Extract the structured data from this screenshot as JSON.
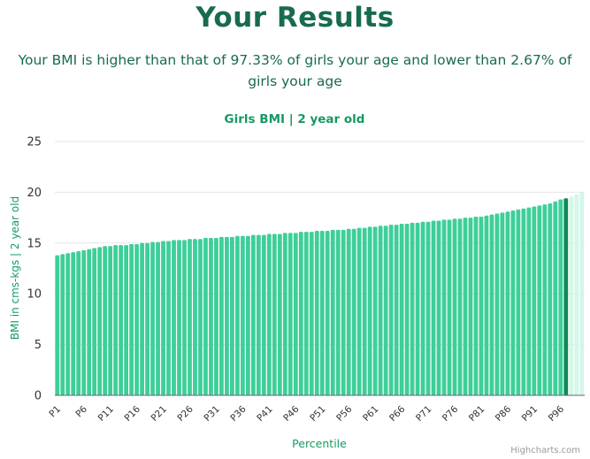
{
  "page": {
    "title": "Your Results",
    "summary": "Your BMI is higher than that of 97.33% of girls your age and lower than 2.67% of girls your age",
    "credits": "Highcharts.com"
  },
  "colors": {
    "bar": "#3ecf99",
    "highlight": "#0f8a58",
    "above": "#d3f7e8",
    "title": "#176b50",
    "chart_title": "#149a62",
    "axis_label": "#169a62"
  },
  "chart_data": {
    "type": "bar",
    "title": "Girls BMI | 2 year old",
    "xlabel": "Percentile",
    "ylabel": "BMI in cms-kgs | 2 year old",
    "ylim": [
      0,
      25
    ],
    "yticks": [
      0,
      5,
      10,
      15,
      20,
      25
    ],
    "grid": true,
    "highlight_category": "P97",
    "tick_labels": [
      "P1",
      "P6",
      "P11",
      "P16",
      "P21",
      "P26",
      "P31",
      "P36",
      "P41",
      "P46",
      "P51",
      "P56",
      "P61",
      "P66",
      "P71",
      "P76",
      "P81",
      "P86",
      "P91",
      "P96"
    ],
    "categories": [
      "P1",
      "P2",
      "P3",
      "P4",
      "P5",
      "P6",
      "P7",
      "P8",
      "P9",
      "P10",
      "P11",
      "P12",
      "P13",
      "P14",
      "P15",
      "P16",
      "P17",
      "P18",
      "P19",
      "P20",
      "P21",
      "P22",
      "P23",
      "P24",
      "P25",
      "P26",
      "P27",
      "P28",
      "P29",
      "P30",
      "P31",
      "P32",
      "P33",
      "P34",
      "P35",
      "P36",
      "P37",
      "P38",
      "P39",
      "P40",
      "P41",
      "P42",
      "P43",
      "P44",
      "P45",
      "P46",
      "P47",
      "P48",
      "P49",
      "P50",
      "P51",
      "P52",
      "P53",
      "P54",
      "P55",
      "P56",
      "P57",
      "P58",
      "P59",
      "P60",
      "P61",
      "P62",
      "P63",
      "P64",
      "P65",
      "P66",
      "P67",
      "P68",
      "P69",
      "P70",
      "P71",
      "P72",
      "P73",
      "P74",
      "P75",
      "P76",
      "P77",
      "P78",
      "P79",
      "P80",
      "P81",
      "P82",
      "P83",
      "P84",
      "P85",
      "P86",
      "P87",
      "P88",
      "P89",
      "P90",
      "P91",
      "P92",
      "P93",
      "P94",
      "P95",
      "P96",
      "P97",
      "P98",
      "P99",
      "P100"
    ],
    "values": [
      13.8,
      13.9,
      14.0,
      14.1,
      14.2,
      14.3,
      14.4,
      14.5,
      14.6,
      14.7,
      14.7,
      14.8,
      14.8,
      14.8,
      14.9,
      14.9,
      15.0,
      15.0,
      15.1,
      15.1,
      15.2,
      15.2,
      15.3,
      15.3,
      15.3,
      15.4,
      15.4,
      15.4,
      15.5,
      15.5,
      15.5,
      15.6,
      15.6,
      15.6,
      15.7,
      15.7,
      15.7,
      15.8,
      15.8,
      15.8,
      15.9,
      15.9,
      15.9,
      16.0,
      16.0,
      16.0,
      16.1,
      16.1,
      16.1,
      16.2,
      16.2,
      16.2,
      16.3,
      16.3,
      16.3,
      16.4,
      16.4,
      16.5,
      16.5,
      16.6,
      16.6,
      16.7,
      16.7,
      16.8,
      16.8,
      16.9,
      16.9,
      17.0,
      17.0,
      17.1,
      17.1,
      17.2,
      17.2,
      17.3,
      17.3,
      17.4,
      17.4,
      17.5,
      17.5,
      17.6,
      17.6,
      17.7,
      17.8,
      17.9,
      18.0,
      18.1,
      18.2,
      18.3,
      18.4,
      18.5,
      18.6,
      18.7,
      18.8,
      18.9,
      19.1,
      19.3,
      19.4,
      19.6,
      19.8,
      20.0
    ]
  }
}
